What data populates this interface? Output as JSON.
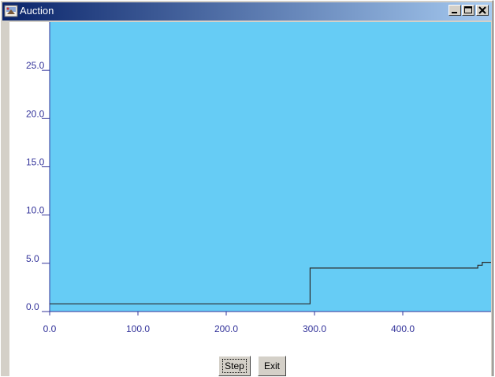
{
  "window": {
    "title": "Auction",
    "icon": "auction-app-icon",
    "controls": [
      "minimize-icon",
      "maximize-icon",
      "close-icon"
    ]
  },
  "colors": {
    "titlebar_start": "#0a246a",
    "titlebar_end": "#a6caf0",
    "plot_background": "#66ccf5",
    "axis": "#33339a",
    "tick_label": "#33339a",
    "series_line": "#2b2b2b"
  },
  "buttons": {
    "step_label": "Step",
    "exit_label": "Exit"
  },
  "chart_data": {
    "type": "line",
    "step": true,
    "grid": false,
    "xlim": [
      0,
      500
    ],
    "ylim": [
      0,
      30
    ],
    "x_ticks": [
      0,
      100,
      200,
      300,
      400
    ],
    "x_tick_labels": [
      "0.0",
      "100.0",
      "200.0",
      "300.0",
      "400.0"
    ],
    "y_ticks": [
      0,
      5,
      10,
      15,
      20,
      25
    ],
    "y_tick_labels": [
      "0.0",
      "5.0",
      "10.0",
      "15.0",
      "20.0",
      "25.0"
    ],
    "series": [
      {
        "x": [
          0,
          295,
          295,
          485,
          485,
          490,
          490,
          500
        ],
        "y": [
          0.8,
          0.8,
          4.5,
          4.5,
          4.8,
          4.8,
          5.1,
          5.1
        ]
      }
    ]
  }
}
